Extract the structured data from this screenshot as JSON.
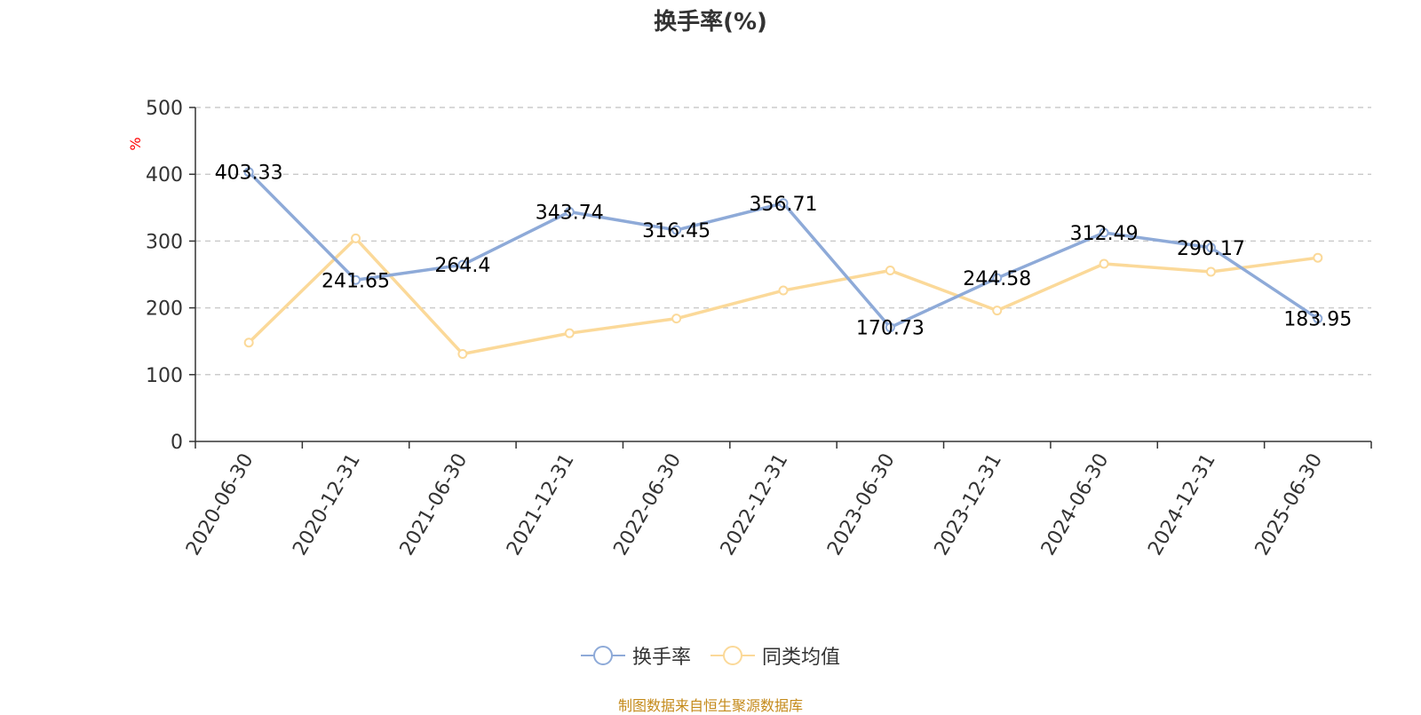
{
  "chart_data": {
    "type": "line",
    "title": "换手率(%)",
    "ylabel": "%",
    "ylim": [
      0,
      500
    ],
    "yticks": [
      0,
      100,
      200,
      300,
      400,
      500
    ],
    "grid": true,
    "legend_position": "bottom-center",
    "categories": [
      "2020-06-30",
      "2020-12-31",
      "2021-06-30",
      "2021-12-31",
      "2022-06-30",
      "2022-12-31",
      "2023-06-30",
      "2023-12-31",
      "2024-06-30",
      "2024-12-31",
      "2025-06-30"
    ],
    "series": [
      {
        "name": "换手率",
        "color": "#8eaad8",
        "values": [
          403.33,
          241.65,
          264.4,
          343.74,
          316.45,
          356.71,
          170.73,
          244.58,
          312.49,
          290.17,
          183.95
        ],
        "data_labels": [
          "403.33",
          "241.65",
          "264.4",
          "343.74",
          "316.45",
          "356.71",
          "170.73",
          "244.58",
          "312.49",
          "290.17",
          "183.95"
        ]
      },
      {
        "name": "同类均值",
        "color": "#fbd999",
        "values": [
          148,
          304,
          131,
          162,
          184,
          226,
          256,
          196,
          266,
          254,
          275
        ]
      }
    ]
  },
  "source_note": "制图数据来自恒生聚源数据库",
  "colors": {
    "axis": "#333333",
    "grid": "#cccccc",
    "ylabel": "#ff0000",
    "source": "#c48a1a"
  }
}
